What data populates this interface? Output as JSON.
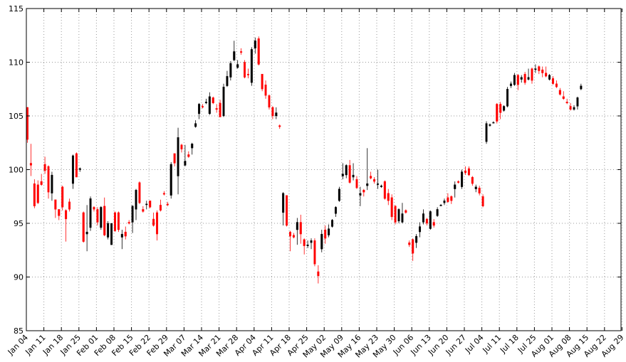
{
  "chart_data": {
    "type": "candlestick",
    "title": "",
    "xlabel": "",
    "ylabel": "",
    "ylim": [
      85,
      115
    ],
    "y_ticks": [
      85,
      90,
      95,
      100,
      105,
      110,
      115
    ],
    "grid": true,
    "grid_style": "dotted",
    "up_color": "#000000",
    "down_color": "#ff0000",
    "x_tick_labels": [
      "Jan 04",
      "Jan 11",
      "Jan 18",
      "Jan 25",
      "Feb 01",
      "Feb 08",
      "Feb 15",
      "Feb 22",
      "Feb 29",
      "Mar 07",
      "Mar 14",
      "Mar 21",
      "Mar 28",
      "Apr 04",
      "Apr 11",
      "Apr 18",
      "Apr 25",
      "May 02",
      "May 09",
      "May 16",
      "May 23",
      "May 30",
      "Jun 06",
      "Jun 13",
      "Jun 20",
      "Jun 27",
      "Jul 04",
      "Jul 11",
      "Jul 18",
      "Jul 25",
      "Aug 01",
      "Aug 08",
      "Aug 15",
      "Aug 22",
      "Aug 29"
    ],
    "ohlc": [
      [
        105.8,
        105.8,
        102.5,
        102.8
      ],
      [
        100.6,
        102.4,
        99.4,
        100.4
      ],
      [
        98.7,
        99.1,
        96.4,
        96.6
      ],
      [
        98.6,
        99.0,
        96.8,
        96.9
      ],
      [
        98.9,
        99.6,
        98.5,
        98.6
      ],
      [
        100.5,
        101.2,
        99.6,
        99.9
      ],
      [
        100.3,
        100.4,
        97.3,
        97.9
      ],
      [
        97.8,
        99.8,
        97.1,
        99.5
      ],
      [
        97.2,
        97.2,
        95.5,
        96.3
      ],
      [
        96.3,
        96.3,
        95.3,
        95.7
      ],
      [
        98.4,
        98.5,
        96.2,
        96.5
      ],
      [
        96.2,
        96.3,
        93.3,
        95.4
      ],
      [
        97.0,
        97.3,
        96.1,
        96.3
      ],
      [
        98.7,
        101.4,
        98.2,
        101.3
      ],
      [
        101.5,
        101.6,
        99.4,
        99.3
      ],
      [
        100.0,
        100.2,
        99.8,
        100.1
      ],
      [
        96.0,
        96.1,
        93.2,
        93.3
      ],
      [
        94.0,
        96.7,
        92.4,
        94.2
      ],
      [
        94.6,
        97.5,
        94.3,
        97.3
      ],
      [
        96.5,
        96.6,
        96.1,
        96.3
      ],
      [
        96.3,
        96.5,
        94.8,
        95.1
      ],
      [
        94.6,
        96.6,
        94.4,
        96.5
      ],
      [
        96.6,
        97.4,
        93.8,
        93.9
      ],
      [
        93.7,
        95.2,
        93.5,
        95.0
      ],
      [
        93.0,
        95.0,
        93.0,
        95.0
      ],
      [
        96.0,
        96.1,
        94.2,
        94.3
      ],
      [
        96.0,
        96.1,
        94.2,
        94.4
      ],
      [
        93.7,
        94.4,
        92.6,
        94.0
      ],
      [
        94.2,
        94.7,
        93.5,
        93.8
      ],
      [
        95.1,
        95.3,
        94.9,
        95.0
      ],
      [
        95.1,
        96.7,
        94.1,
        96.6
      ],
      [
        96.3,
        98.2,
        95.3,
        98.1
      ],
      [
        98.8,
        98.9,
        96.8,
        96.9
      ],
      [
        96.3,
        96.6,
        96.0,
        96.1
      ],
      [
        96.8,
        97.1,
        96.3,
        96.8
      ],
      [
        97.1,
        97.1,
        96.4,
        96.5
      ],
      [
        95.4,
        96.0,
        94.7,
        94.8
      ],
      [
        96.0,
        96.2,
        93.4,
        94.0
      ],
      [
        96.7,
        97.2,
        96.1,
        96.2
      ],
      [
        97.8,
        98.0,
        97.6,
        97.7
      ],
      [
        96.8,
        97.0,
        96.6,
        96.7
      ],
      [
        97.6,
        100.7,
        97.3,
        100.5
      ],
      [
        101.5,
        101.5,
        100.3,
        100.6
      ],
      [
        99.4,
        103.9,
        97.7,
        103.0
      ],
      [
        102.3,
        102.4,
        101.6,
        101.9
      ],
      [
        100.4,
        102.3,
        100.3,
        100.8
      ],
      [
        101.4,
        101.7,
        101.1,
        101.2
      ],
      [
        102.0,
        102.5,
        101.4,
        102.4
      ],
      [
        104.0,
        104.6,
        103.9,
        104.3
      ],
      [
        105.2,
        106.2,
        104.7,
        106.1
      ],
      [
        105.9,
        106.1,
        105.7,
        105.8
      ],
      [
        106.2,
        106.6,
        106.1,
        106.3
      ],
      [
        105.2,
        107.2,
        105.1,
        106.8
      ],
      [
        106.7,
        106.8,
        106.1,
        106.2
      ],
      [
        105.7,
        106.1,
        105.3,
        105.6
      ],
      [
        106.2,
        106.5,
        104.9,
        104.9
      ],
      [
        105.0,
        108.0,
        104.9,
        107.7
      ],
      [
        107.8,
        109.2,
        107.7,
        108.7
      ],
      [
        108.6,
        110.1,
        108.3,
        109.9
      ],
      [
        110.2,
        112.0,
        110.1,
        111.0
      ],
      [
        109.5,
        110.2,
        109.4,
        109.8
      ],
      [
        111.0,
        111.3,
        110.7,
        110.9
      ],
      [
        110.0,
        110.2,
        108.5,
        108.6
      ],
      [
        108.9,
        109.4,
        108.5,
        108.8
      ],
      [
        108.1,
        111.4,
        107.8,
        111.2
      ],
      [
        111.3,
        112.3,
        110.8,
        112.0
      ],
      [
        112.2,
        112.4,
        109.7,
        109.8
      ],
      [
        108.9,
        108.9,
        107.3,
        107.5
      ],
      [
        107.9,
        108.3,
        106.6,
        106.9
      ],
      [
        106.9,
        107.0,
        105.6,
        105.8
      ],
      [
        105.8,
        105.9,
        104.7,
        105.0
      ],
      [
        105.0,
        105.8,
        104.7,
        105.3
      ],
      [
        104.1,
        104.2,
        103.8,
        104.0
      ],
      [
        96.0,
        97.9,
        94.8,
        97.8
      ],
      [
        97.6,
        97.6,
        94.7,
        94.8
      ],
      [
        94.2,
        94.3,
        92.4,
        93.8
      ],
      [
        93.9,
        94.1,
        93.6,
        93.7
      ],
      [
        94.4,
        95.5,
        93.0,
        95.1
      ],
      [
        95.1,
        95.8,
        93.1,
        94.0
      ],
      [
        93.5,
        93.6,
        92.1,
        92.9
      ],
      [
        92.9,
        93.4,
        92.7,
        93.0
      ],
      [
        93.2,
        93.6,
        92.6,
        93.4
      ],
      [
        93.4,
        93.6,
        91.0,
        91.2
      ],
      [
        90.5,
        91.1,
        89.4,
        90.1
      ],
      [
        92.6,
        94.4,
        92.3,
        94.0
      ],
      [
        94.4,
        94.8,
        93.1,
        93.6
      ],
      [
        93.9,
        94.9,
        93.7,
        94.5
      ],
      [
        94.7,
        95.4,
        94.6,
        95.3
      ],
      [
        95.9,
        96.6,
        95.6,
        96.5
      ],
      [
        97.1,
        98.4,
        97.0,
        98.2
      ],
      [
        99.4,
        100.6,
        99.1,
        99.6
      ],
      [
        99.5,
        100.5,
        99.2,
        100.4
      ],
      [
        100.4,
        100.9,
        98.7,
        98.8
      ],
      [
        99.3,
        100.6,
        99.0,
        99.5
      ],
      [
        99.1,
        99.4,
        98.2,
        98.3
      ],
      [
        97.6,
        98.4,
        96.6,
        97.8
      ],
      [
        98.1,
        98.2,
        97.5,
        97.9
      ],
      [
        98.5,
        102.0,
        98.1,
        98.7
      ],
      [
        99.4,
        99.8,
        99.1,
        99.2
      ],
      [
        99.1,
        99.3,
        98.7,
        98.9
      ],
      [
        98.6,
        100.0,
        98.2,
        98.7
      ],
      [
        98.4,
        98.6,
        98.3,
        98.5
      ],
      [
        98.9,
        99.0,
        97.2,
        97.3
      ],
      [
        97.8,
        98.2,
        96.7,
        97.1
      ],
      [
        97.4,
        97.7,
        95.3,
        95.6
      ],
      [
        96.6,
        96.7,
        94.9,
        95.1
      ],
      [
        95.2,
        96.4,
        95.0,
        96.3
      ],
      [
        95.1,
        96.9,
        95.0,
        95.9
      ],
      [
        96.2,
        96.3,
        95.9,
        96.0
      ],
      [
        93.2,
        93.4,
        92.8,
        93.0
      ],
      [
        93.5,
        93.6,
        91.5,
        92.2
      ],
      [
        93.2,
        94.0,
        92.7,
        93.8
      ],
      [
        94.2,
        95.1,
        93.7,
        94.7
      ],
      [
        95.1,
        96.3,
        94.9,
        95.9
      ],
      [
        95.4,
        95.5,
        94.8,
        95.0
      ],
      [
        94.5,
        96.2,
        94.4,
        96.1
      ],
      [
        95.1,
        95.4,
        94.6,
        94.8
      ],
      [
        95.7,
        96.5,
        95.6,
        96.3
      ],
      [
        96.7,
        96.8,
        96.6,
        96.7
      ],
      [
        96.9,
        97.3,
        96.7,
        97.1
      ],
      [
        97.4,
        97.8,
        96.9,
        97.0
      ],
      [
        97.5,
        97.6,
        96.8,
        97.1
      ],
      [
        98.2,
        98.9,
        97.4,
        98.6
      ],
      [
        98.9,
        99.0,
        98.7,
        98.8
      ],
      [
        98.4,
        100.0,
        98.2,
        99.8
      ],
      [
        99.9,
        100.3,
        99.5,
        99.7
      ],
      [
        100.1,
        100.3,
        99.4,
        99.5
      ],
      [
        99.3,
        99.4,
        98.5,
        98.7
      ],
      [
        98.2,
        98.6,
        97.9,
        98.4
      ],
      [
        98.3,
        98.5,
        97.6,
        97.8
      ],
      [
        97.5,
        97.7,
        96.5,
        96.6
      ],
      [
        102.6,
        104.5,
        102.4,
        104.3
      ],
      [
        104.1,
        104.3,
        104.0,
        104.2
      ],
      [
        104.4,
        104.5,
        104.3,
        104.4
      ],
      [
        106.1,
        106.2,
        104.3,
        104.5
      ],
      [
        106.1,
        106.3,
        104.7,
        105.3
      ],
      [
        105.5,
        106.0,
        105.4,
        105.9
      ],
      [
        105.9,
        107.7,
        105.8,
        107.5
      ],
      [
        107.8,
        108.2,
        107.6,
        108.0
      ],
      [
        107.9,
        109.0,
        107.8,
        108.8
      ],
      [
        108.8,
        108.9,
        107.4,
        107.9
      ],
      [
        108.4,
        108.8,
        108.1,
        108.6
      ],
      [
        108.9,
        109.1,
        107.9,
        108.1
      ],
      [
        108.4,
        109.4,
        108.3,
        108.6
      ],
      [
        109.4,
        109.5,
        108.0,
        108.3
      ],
      [
        109.3,
        109.8,
        109.0,
        109.4
      ],
      [
        109.6,
        109.7,
        108.9,
        109.2
      ],
      [
        109.3,
        109.6,
        108.6,
        109.0
      ],
      [
        109.0,
        109.6,
        108.6,
        108.7
      ],
      [
        108.4,
        108.9,
        108.3,
        108.8
      ],
      [
        108.5,
        108.7,
        107.9,
        108.0
      ],
      [
        108.0,
        108.3,
        107.6,
        107.7
      ],
      [
        107.4,
        107.6,
        106.9,
        107.0
      ],
      [
        106.8,
        107.3,
        106.5,
        106.6
      ],
      [
        106.3,
        106.6,
        106.1,
        106.2
      ],
      [
        105.9,
        106.2,
        105.5,
        105.6
      ],
      [
        105.6,
        106.0,
        105.5,
        105.8
      ],
      [
        105.9,
        106.8,
        105.6,
        106.7
      ],
      [
        107.5,
        108.0,
        107.4,
        107.8
      ]
    ]
  }
}
